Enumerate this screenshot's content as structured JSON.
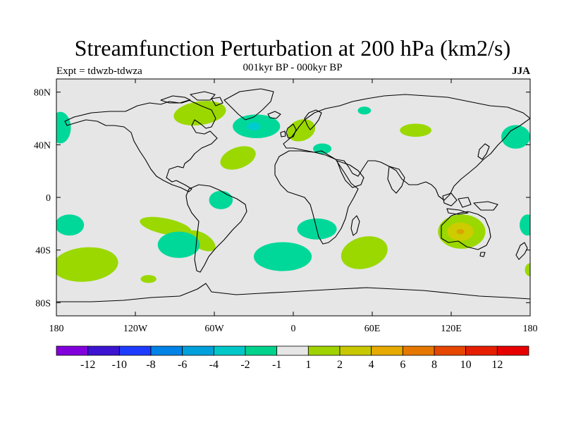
{
  "title": "Streamfunction Perturbation at 200 hPa (km2/s)",
  "subtitle": "001kyr BP - 000kyr BP",
  "experiment": "Expt = tdwzb-tdwza",
  "season": "JJA",
  "colors": {
    "background": "#e6e6e6",
    "neg_1_2": "#00d89a",
    "neg_2_4": "#00ccd0",
    "pos_1_2": "#9ad800",
    "pos_2_4": "#cccc00",
    "pos_4_6": "#d9a600"
  },
  "map": {
    "lon_range": [
      -180,
      180
    ],
    "lat_range": [
      -90,
      90
    ],
    "lat_ticks": [
      {
        "value": 80,
        "label": "80N"
      },
      {
        "value": 40,
        "label": "40N"
      },
      {
        "value": 0,
        "label": "0"
      },
      {
        "value": -40,
        "label": "40S"
      },
      {
        "value": -80,
        "label": "80S"
      }
    ],
    "lon_ticks": [
      {
        "value": -180,
        "label": "180"
      },
      {
        "value": -120,
        "label": "120W"
      },
      {
        "value": -60,
        "label": "60W"
      },
      {
        "value": 0,
        "label": "0"
      },
      {
        "value": 60,
        "label": "60E"
      },
      {
        "value": 120,
        "label": "120E"
      },
      {
        "value": 180,
        "label": "180"
      }
    ],
    "anomalies": [
      {
        "name": "canada-positive",
        "lon": -71,
        "lat": 64,
        "rlon": 20,
        "rlat": 9,
        "rot": -8,
        "color": "#9ad800"
      },
      {
        "name": "north-pacific-east-negative",
        "lon": -177,
        "lat": 53,
        "rlon": 8,
        "rlat": 12,
        "rot": 0,
        "color": "#00d89a"
      },
      {
        "name": "north-atlantic-negative",
        "lon": -28,
        "lat": 54,
        "rlon": 18,
        "rlat": 9,
        "rot": 0,
        "color": "#00d89a"
      },
      {
        "name": "north-atlantic-core",
        "lon": -30,
        "lat": 54,
        "rlon": 5,
        "rlat": 3,
        "rot": 0,
        "color": "#00ccd0"
      },
      {
        "name": "europe-positive",
        "lon": 6,
        "lat": 51,
        "rlon": 11,
        "rlat": 8,
        "rot": -20,
        "color": "#9ad800"
      },
      {
        "name": "mediterranean-negative",
        "lon": 22,
        "lat": 37,
        "rlon": 7,
        "rlat": 4,
        "rot": 0,
        "color": "#00d89a"
      },
      {
        "name": "siberia-positive",
        "lon": 93,
        "lat": 51,
        "rlon": 12,
        "rlat": 5,
        "rot": 0,
        "color": "#9ad800"
      },
      {
        "name": "barents-negative",
        "lon": 54,
        "lat": 66,
        "rlon": 5,
        "rlat": 3,
        "rot": 0,
        "color": "#00d89a"
      },
      {
        "name": "west-pacific-negative",
        "lon": 169,
        "lat": 46,
        "rlon": 11,
        "rlat": 9,
        "rot": 0,
        "color": "#00d89a"
      },
      {
        "name": "atlantic-subtropic-positive",
        "lon": -42,
        "lat": 30,
        "rlon": 14,
        "rlat": 8,
        "rot": -20,
        "color": "#9ad800"
      },
      {
        "name": "south-america-north-negative",
        "lon": -55,
        "lat": -2,
        "rlon": 9,
        "rlat": 7,
        "rot": 0,
        "color": "#00d89a"
      },
      {
        "name": "south-pacific-band-positive-a",
        "lon": -97,
        "lat": -22,
        "rlon": 20,
        "rlat": 6,
        "rot": 12,
        "color": "#9ad800"
      },
      {
        "name": "south-pacific-band-positive-b",
        "lon": -70,
        "lat": -33,
        "rlon": 12,
        "rlat": 6,
        "rot": 30,
        "color": "#9ad800"
      },
      {
        "name": "subtropic-southeast-pacific-negative",
        "lon": -170,
        "lat": -21,
        "rlon": 11,
        "rlat": 8,
        "rot": 0,
        "color": "#00d89a"
      },
      {
        "name": "south-pacific-negative",
        "lon": -87,
        "lat": -36,
        "rlon": 16,
        "rlat": 10,
        "rot": 0,
        "color": "#00d89a"
      },
      {
        "name": "southern-ocean-west-positive",
        "lon": -158,
        "lat": -51,
        "rlon": 25,
        "rlat": 13,
        "rot": -5,
        "color": "#9ad800"
      },
      {
        "name": "small-south-pacific-positive",
        "lon": -110,
        "lat": -62,
        "rlon": 6,
        "rlat": 3,
        "rot": 0,
        "color": "#9ad800"
      },
      {
        "name": "south-atlantic-negative",
        "lon": -8,
        "lat": -45,
        "rlon": 22,
        "rlat": 11,
        "rot": 0,
        "color": "#00d89a"
      },
      {
        "name": "south-africa-negative",
        "lon": 18,
        "lat": -24,
        "rlon": 15,
        "rlat": 8,
        "rot": 0,
        "color": "#00d89a"
      },
      {
        "name": "indian-ocean-positive",
        "lon": 54,
        "lat": -42,
        "rlon": 18,
        "rlat": 12,
        "rot": -15,
        "color": "#9ad800"
      },
      {
        "name": "australia-positive",
        "lon": 128,
        "lat": -26,
        "rlon": 18,
        "rlat": 13,
        "rot": 0,
        "color": "#9ad800"
      },
      {
        "name": "australia-core-2-4",
        "lon": 127,
        "lat": -26,
        "rlon": 10,
        "rlat": 7,
        "rot": 0,
        "color": "#cccc00"
      },
      {
        "name": "australia-core-4-6",
        "lon": 127,
        "lat": -26,
        "rlon": 3,
        "rlat": 2,
        "rot": 0,
        "color": "#d9a600"
      },
      {
        "name": "tasman-negative",
        "lon": 178,
        "lat": -21,
        "rlon": 6,
        "rlat": 8,
        "rot": 0,
        "color": "#00d89a"
      },
      {
        "name": "south-edge-positive",
        "lon": 180,
        "lat": -55,
        "rlon": 4,
        "rlat": 5,
        "rot": 0,
        "color": "#9ad800"
      }
    ]
  },
  "colorbar": {
    "labels": [
      "-12",
      "-10",
      "-8",
      "-6",
      "-4",
      "-2",
      "-1",
      "1",
      "2",
      "4",
      "6",
      "8",
      "10",
      "12"
    ],
    "colors": [
      "#8200dc",
      "#3c14d2",
      "#1e3cff",
      "#0082e6",
      "#00a0dc",
      "#00c8c8",
      "#00d28c",
      "#e6e6e6",
      "#a0d200",
      "#c8c800",
      "#e6aa00",
      "#e67800",
      "#e64600",
      "#e61e00",
      "#e60000"
    ]
  }
}
